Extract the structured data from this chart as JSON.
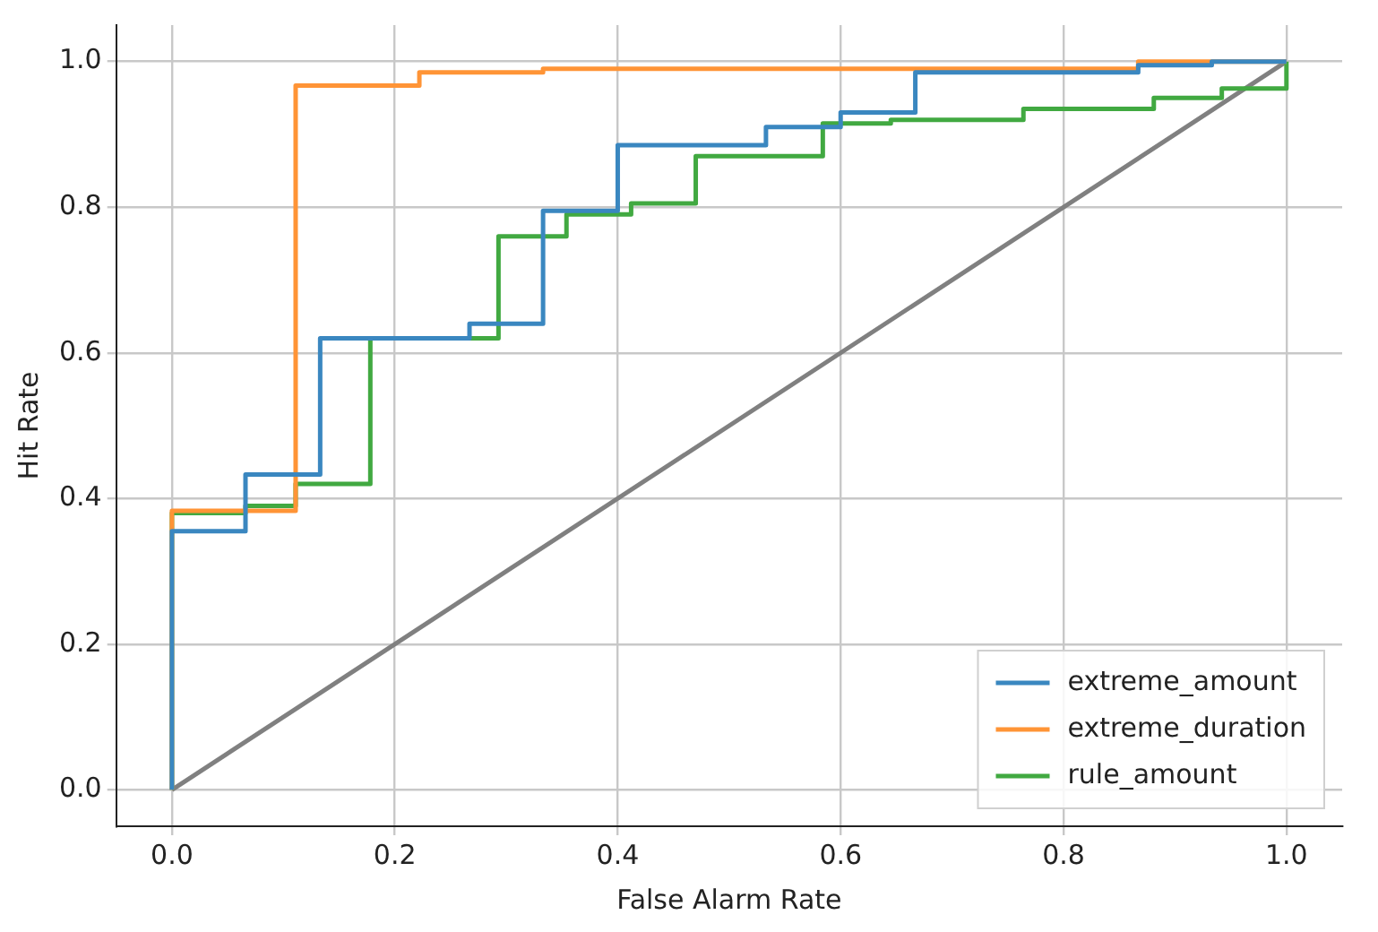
{
  "chart_data": {
    "type": "line",
    "xlabel": "False Alarm Rate",
    "ylabel": "Hit Rate",
    "xlim": [
      -0.05,
      1.05
    ],
    "ylim": [
      -0.05,
      1.05
    ],
    "xticks": [
      {
        "value": 0,
        "label": "0.0"
      },
      {
        "value": 0.2,
        "label": "0.2"
      },
      {
        "value": 0.4,
        "label": "0.4"
      },
      {
        "value": 0.6,
        "label": "0.6"
      },
      {
        "value": 0.8,
        "label": "0.8"
      },
      {
        "value": 1,
        "label": "1.0"
      }
    ],
    "yticks": [
      {
        "value": 0,
        "label": "0.0"
      },
      {
        "value": 0.2,
        "label": "0.2"
      },
      {
        "value": 0.4,
        "label": "0.4"
      },
      {
        "value": 0.6,
        "label": "0.6"
      },
      {
        "value": 0.8,
        "label": "0.8"
      },
      {
        "value": 1,
        "label": "1.0"
      }
    ],
    "grid": true,
    "legend": "bottom right",
    "marker": "none",
    "line_style": "solid",
    "series": [
      {
        "name": "extreme_amount",
        "color": "#3a87c0",
        "x": [
          0,
          0,
          0.066,
          0.066,
          0.133,
          0.133,
          0.267,
          0.267,
          0.333,
          0.333,
          0.4,
          0.4,
          0.533,
          0.533,
          0.6,
          0.6,
          0.667,
          0.667,
          0.867,
          0.867,
          0.933,
          0.933,
          1
        ],
        "values": [
          0,
          0.355,
          0.355,
          0.433,
          0.433,
          0.62,
          0.62,
          0.64,
          0.64,
          0.795,
          0.795,
          0.885,
          0.885,
          0.91,
          0.91,
          0.93,
          0.93,
          0.985,
          0.985,
          0.995,
          0.995,
          1,
          1
        ]
      },
      {
        "name": "extreme_duration",
        "color": "#ff9436",
        "x": [
          0,
          0,
          0.111,
          0.111,
          0.222,
          0.222,
          0.333,
          0.333,
          0.867,
          0.867,
          1
        ],
        "values": [
          0,
          0.383,
          0.383,
          0.967,
          0.967,
          0.985,
          0.985,
          0.99,
          0.99,
          1,
          1
        ]
      },
      {
        "name": "rule_amount",
        "color": "#41a941",
        "x": [
          0,
          0,
          0.066,
          0.066,
          0.111,
          0.111,
          0.178,
          0.178,
          0.293,
          0.293,
          0.354,
          0.354,
          0.412,
          0.412,
          0.47,
          0.47,
          0.584,
          0.584,
          0.645,
          0.645,
          0.764,
          0.764,
          0.881,
          0.881,
          0.942,
          0.942,
          1,
          1
        ],
        "values": [
          0,
          0.38,
          0.38,
          0.39,
          0.39,
          0.42,
          0.42,
          0.62,
          0.62,
          0.76,
          0.76,
          0.79,
          0.79,
          0.805,
          0.805,
          0.87,
          0.87,
          0.915,
          0.915,
          0.92,
          0.92,
          0.935,
          0.935,
          0.95,
          0.95,
          0.963,
          0.963,
          1
        ]
      },
      {
        "color": "#808080",
        "x": [
          0,
          1
        ],
        "values": [
          0,
          1
        ]
      }
    ]
  }
}
